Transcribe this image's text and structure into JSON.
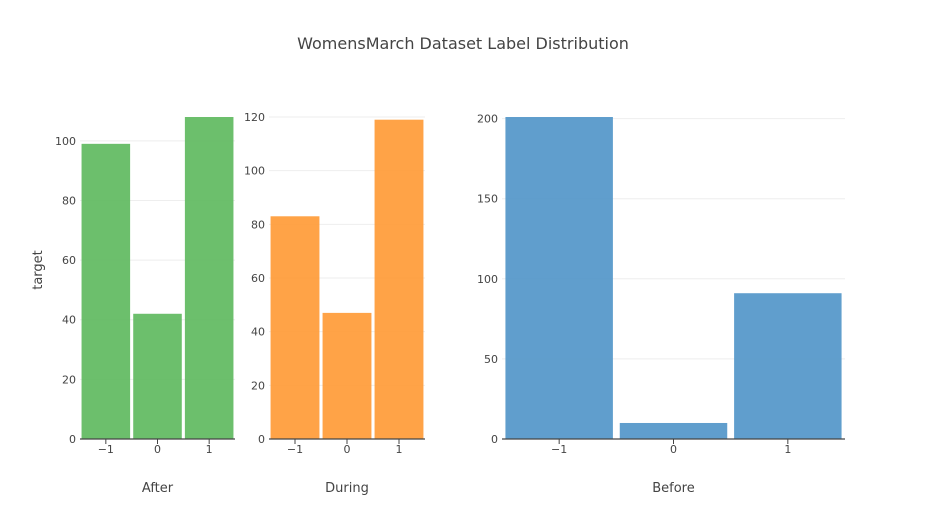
{
  "chart_data": {
    "title": "WomensMarch Dataset Label Distribution",
    "ylabel": "target",
    "type": "bar",
    "categories": [
      "−1",
      "0",
      "1"
    ],
    "grid": true,
    "subplots": [
      {
        "name": "After",
        "xlabel": "After",
        "color": "#5cb85c",
        "values": [
          99,
          42,
          108
        ],
        "ylim": [
          0,
          108
        ],
        "yticks": [
          0,
          20,
          40,
          60,
          80,
          100
        ]
      },
      {
        "name": "During",
        "xlabel": "During",
        "color": "#ff9933",
        "values": [
          83,
          47,
          119
        ],
        "ylim": [
          0,
          120
        ],
        "yticks": [
          0,
          20,
          40,
          60,
          80,
          100,
          120
        ]
      },
      {
        "name": "Before",
        "xlabel": "Before",
        "color": "#4f93c8",
        "values": [
          201,
          10,
          91
        ],
        "ylim": [
          0,
          201
        ],
        "yticks": [
          0,
          50,
          100,
          150,
          200
        ]
      }
    ]
  }
}
